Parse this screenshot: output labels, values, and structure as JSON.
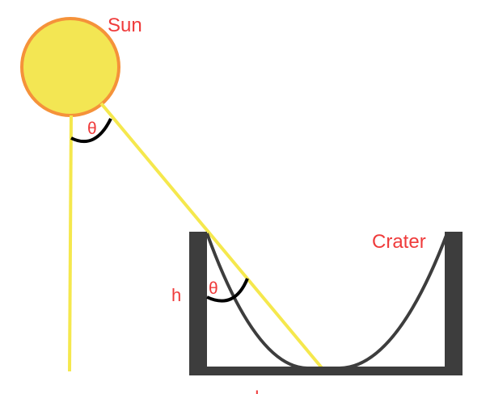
{
  "labels": {
    "sun": "Sun",
    "crater": "Crater",
    "height": "h",
    "angle_top": "θ",
    "angle_crater": "θ",
    "length": "L"
  },
  "colors": {
    "sun_fill": "#f3e653",
    "sun_stroke": "#f5923a",
    "ray": "#f5e84d",
    "crater_wall": "#3d3d3d",
    "angle_arc": "#000000",
    "label": "#ef3b3b"
  }
}
